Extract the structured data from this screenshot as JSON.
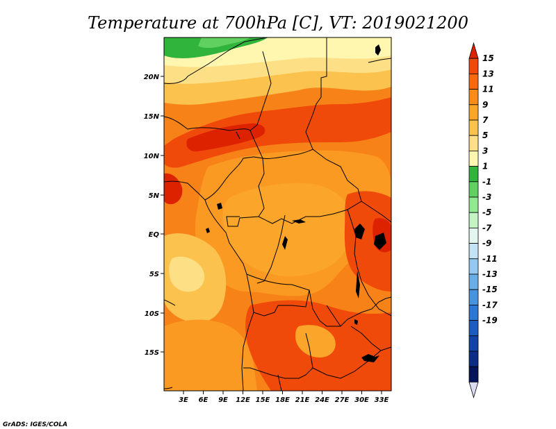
{
  "title": "Temperature at 700hPa [C], VT: 2019021200",
  "credit": "GrADS: IGES/COLA",
  "map": {
    "variable": "Temperature",
    "level": "700hPa",
    "units": "C",
    "valid_time": "2019021200",
    "lat_labels": [
      "20N",
      "15N",
      "10N",
      "5N",
      "EQ",
      "5S",
      "10S",
      "15S"
    ],
    "lon_labels": [
      "3E",
      "6E",
      "9E",
      "12E",
      "15E",
      "18E",
      "21E",
      "24E",
      "27E",
      "30E",
      "33E"
    ]
  },
  "colorbar": {
    "labels": [
      "15",
      "13",
      "11",
      "9",
      "7",
      "5",
      "3",
      "1",
      "-1",
      "-3",
      "-5",
      "-7",
      "-9",
      "-11",
      "-13",
      "-15",
      "-17",
      "-19"
    ],
    "colors": [
      "#dd2200",
      "#f04a0a",
      "#f76a10",
      "#fb8c1c",
      "#fba52a",
      "#fcc24e",
      "#fde085",
      "#fff7b0",
      "#31b43c",
      "#60d060",
      "#90e890",
      "#c4f4c4",
      "#e4f6f0",
      "#c4e4f6",
      "#94c8f0",
      "#6aaee8",
      "#4694e0",
      "#2a78d4",
      "#1c5cc0",
      "#1244a8",
      "#0c2c88",
      "#06145a",
      "#dcdcf0"
    ]
  }
}
